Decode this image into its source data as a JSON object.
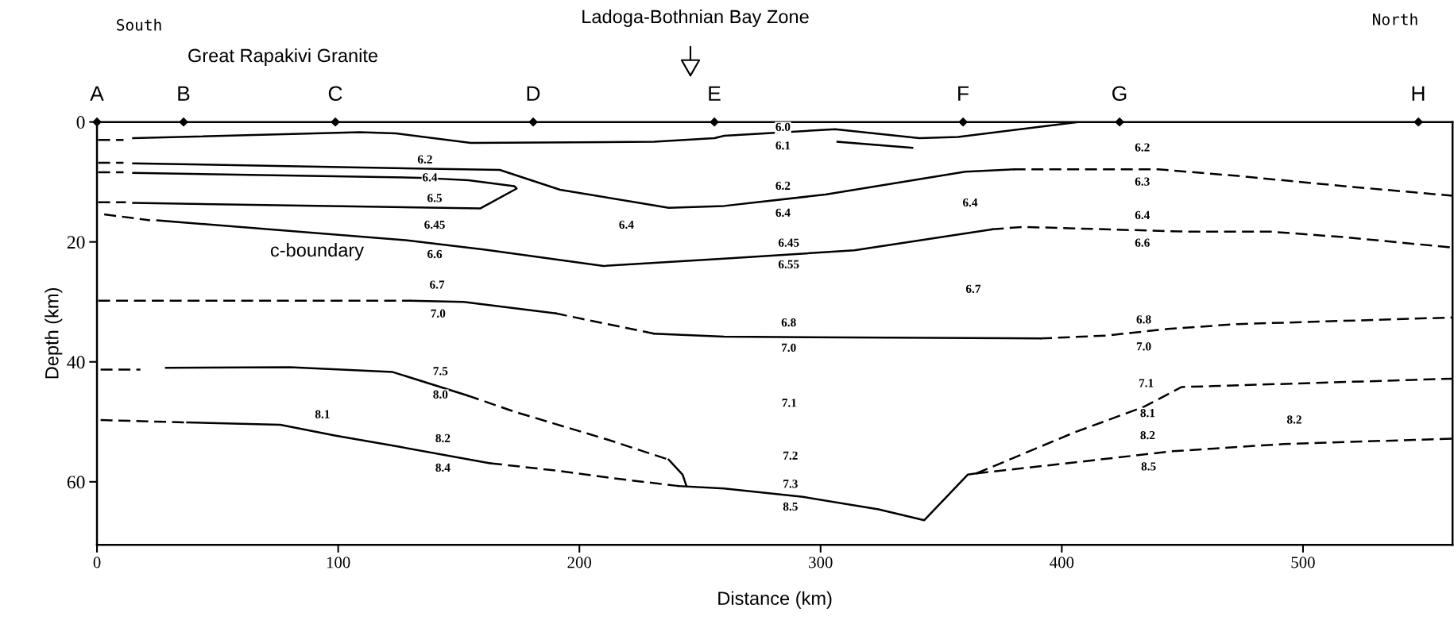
{
  "chart_data": {
    "type": "line",
    "xlabel": "Distance (km)",
    "ylabel": "Depth (km)",
    "xlim": [
      0,
      562
    ],
    "xticks": [
      0,
      100,
      200,
      300,
      400,
      500
    ],
    "ylim": [
      70.5,
      0
    ],
    "yticks": [
      0,
      20,
      40,
      60
    ],
    "grid": false,
    "series": [
      {
        "color": "#000000",
        "line_style": "dashed",
        "x": [
          0.5,
          11
        ],
        "values": [
          3.0,
          3.0
        ]
      },
      {
        "color": "#000000",
        "line_style": "solid",
        "x": [
          15,
          109,
          124,
          155,
          231,
          256,
          260,
          306,
          341,
          357,
          407
        ],
        "values": [
          2.7,
          1.7,
          1.9,
          3.5,
          3.3,
          2.7,
          2.3,
          1.2,
          2.7,
          2.5,
          0
        ]
      },
      {
        "color": "#000000",
        "line_style": "solid",
        "x": [
          307,
          338
        ],
        "values": [
          3.3,
          4.3
        ]
      },
      {
        "color": "#000000",
        "line_style": "dashed",
        "x": [
          0.5,
          11
        ],
        "values": [
          6.8,
          6.8
        ]
      },
      {
        "color": "#000000",
        "line_style": "solid",
        "x": [
          15,
          167,
          192,
          237,
          260,
          302,
          360,
          380
        ],
        "values": [
          6.9,
          8.0,
          11.3,
          14.3,
          14.0,
          12.1,
          8.3,
          7.9
        ]
      },
      {
        "color": "#000000",
        "line_style": "dashed",
        "x": [
          380,
          440,
          473,
          517,
          562
        ],
        "values": [
          7.9,
          7.9,
          9.0,
          10.7,
          12.3
        ]
      },
      {
        "color": "#000000",
        "line_style": "dashed",
        "x": [
          0.5,
          11
        ],
        "values": [
          8.4,
          8.4
        ]
      },
      {
        "color": "#000000",
        "line_style": "solid",
        "x": [
          15,
          134,
          154,
          173,
          174,
          159,
          15
        ],
        "values": [
          8.5,
          9.3,
          9.7,
          10.7,
          11.1,
          14.4,
          13.5
        ]
      },
      {
        "color": "#000000",
        "line_style": "dashed",
        "x": [
          0.5,
          12
        ],
        "values": [
          13.4,
          13.4
        ]
      },
      {
        "color": "#000000",
        "line_style": "dashed",
        "x": [
          3,
          22
        ],
        "values": [
          15.4,
          16.4
        ]
      },
      {
        "color": "#000000",
        "line_style": "solid",
        "x": [
          25,
          128,
          161,
          210,
          260,
          314,
          371
        ],
        "values": [
          16.4,
          19.7,
          21.3,
          24.0,
          22.8,
          21.4,
          17.9
        ]
      },
      {
        "color": "#000000",
        "line_style": "dashed",
        "x": [
          371,
          384,
          453,
          487,
          517,
          561
        ],
        "values": [
          17.9,
          17.5,
          18.3,
          18.3,
          19.2,
          20.9
        ]
      },
      {
        "color": "#000000",
        "line_style": "dashed",
        "x": [
          0.5,
          130
        ],
        "values": [
          29.8,
          29.8
        ]
      },
      {
        "color": "#000000",
        "line_style": "solid",
        "x": [
          130,
          152,
          190
        ],
        "values": [
          29.8,
          30.0,
          31.9
        ]
      },
      {
        "color": "#000000",
        "line_style": "dashed",
        "x": [
          190,
          231
        ],
        "values": [
          31.9,
          35.3
        ]
      },
      {
        "color": "#000000",
        "line_style": "solid",
        "x": [
          231,
          260,
          391
        ],
        "values": [
          35.3,
          35.8,
          36.1
        ]
      },
      {
        "color": "#000000",
        "line_style": "dashed",
        "x": [
          391,
          419,
          444,
          473,
          562
        ],
        "values": [
          36.1,
          35.6,
          34.5,
          33.7,
          32.6
        ]
      },
      {
        "color": "#000000",
        "line_style": "dashed",
        "x": [
          1.5,
          18
        ],
        "values": [
          41.3,
          41.3
        ]
      },
      {
        "color": "#000000",
        "line_style": "solid",
        "x": [
          28.6,
          80,
          122.6,
          153.6
        ],
        "values": [
          41.0,
          40.9,
          41.7,
          45.6
        ]
      },
      {
        "color": "#000000",
        "line_style": "dashed",
        "x": [
          153.6,
          173,
          212,
          237
        ],
        "values": [
          45.6,
          48.3,
          53.0,
          56.3
        ]
      },
      {
        "color": "#000000",
        "line_style": "solid",
        "x": [
          237,
          242.8,
          244.3
        ],
        "values": [
          56.3,
          58.8,
          60.6
        ]
      },
      {
        "color": "#000000",
        "line_style": "dashed",
        "x": [
          1.5,
          37.4
        ],
        "values": [
          49.7,
          50.1
        ]
      },
      {
        "color": "#000000",
        "line_style": "solid",
        "x": [
          37.4,
          76,
          99,
          124.6,
          163
        ],
        "values": [
          50.1,
          50.5,
          52.3,
          54.1,
          56.9
        ]
      },
      {
        "color": "#000000",
        "line_style": "dashed",
        "x": [
          163,
          192,
          212,
          241
        ],
        "values": [
          56.9,
          58.2,
          59.3,
          60.7
        ]
      },
      {
        "color": "#000000",
        "line_style": "solid",
        "x": [
          241,
          260,
          292.6,
          324,
          343,
          361,
          364.6
        ],
        "values": [
          60.7,
          61.1,
          62.5,
          64.6,
          66.4,
          58.8,
          58.6
        ]
      },
      {
        "color": "#000000",
        "line_style": "dashed",
        "x": [
          364.6,
          405,
          434,
          449.6,
          562
        ],
        "values": [
          58.6,
          51.8,
          47.5,
          44.2,
          42.8
        ]
      },
      {
        "color": "#000000",
        "line_style": "dashed",
        "x": [
          364.6,
          395.6,
          446,
          492,
          562
        ],
        "values": [
          58.6,
          57.2,
          54.9,
          53.7,
          52.8
        ]
      }
    ],
    "annotations": [
      "South",
      "Great Rapakivi Granite",
      "North",
      "Ladoga-Bothnian Bay Zone",
      "c-boundary",
      "A",
      "B",
      "C",
      "D",
      "E",
      "F",
      "G",
      "H",
      {
        "text": "6.2",
        "x": 136,
        "y": 6.4
      },
      {
        "text": "6.4",
        "x": 138,
        "y": 9.4
      },
      {
        "text": "6.5",
        "x": 140,
        "y": 12.85
      },
      {
        "text": "6.45",
        "x": 140,
        "y": 17.3
      },
      {
        "text": "6.4",
        "x": 219.5,
        "y": 17.3
      },
      {
        "text": "6.6",
        "x": 140,
        "y": 22.2
      },
      {
        "text": "6.7",
        "x": 141,
        "y": 27.3
      },
      {
        "text": "7.0",
        "x": 141.4,
        "y": 32.1
      },
      {
        "text": "7.5",
        "x": 142.4,
        "y": 41.7
      },
      {
        "text": "8.0",
        "x": 142.4,
        "y": 45.6
      },
      {
        "text": "8.1",
        "x": 93.5,
        "y": 48.9
      },
      {
        "text": "8.2",
        "x": 143.4,
        "y": 52.9
      },
      {
        "text": "8.4",
        "x": 143.4,
        "y": 57.8
      },
      {
        "text": "6.0",
        "x": 284.4,
        "y": 1.0
      },
      {
        "text": "6.1",
        "x": 284.4,
        "y": 4.1
      },
      {
        "text": "6.2",
        "x": 433.4,
        "y": 4.4
      },
      {
        "text": "6.2",
        "x": 284.4,
        "y": 10.8
      },
      {
        "text": "6.3",
        "x": 433.4,
        "y": 10.1
      },
      {
        "text": "6.4",
        "x": 362,
        "y": 13.6
      },
      {
        "text": "6.4",
        "x": 284.4,
        "y": 15.3
      },
      {
        "text": "6.4",
        "x": 433.4,
        "y": 15.7
      },
      {
        "text": "6.45",
        "x": 286.8,
        "y": 20.3
      },
      {
        "text": "6.6",
        "x": 433.4,
        "y": 20.3
      },
      {
        "text": "6.55",
        "x": 286.8,
        "y": 23.9
      },
      {
        "text": "6.7",
        "x": 363.3,
        "y": 28.0
      },
      {
        "text": "6.8",
        "x": 286.8,
        "y": 33.6
      },
      {
        "text": "6.8",
        "x": 434,
        "y": 33.1
      },
      {
        "text": "7.0",
        "x": 286.8,
        "y": 37.8
      },
      {
        "text": "7.0",
        "x": 434,
        "y": 37.6
      },
      {
        "text": "7.1",
        "x": 435,
        "y": 43.7
      },
      {
        "text": "7.1",
        "x": 287,
        "y": 47.0
      },
      {
        "text": "8.1",
        "x": 435.6,
        "y": 48.7
      },
      {
        "text": "8.2",
        "x": 496.4,
        "y": 49.8
      },
      {
        "text": "8.2",
        "x": 435.6,
        "y": 52.4
      },
      {
        "text": "7.2",
        "x": 287.5,
        "y": 55.8
      },
      {
        "text": "8.5",
        "x": 436,
        "y": 57.6
      },
      {
        "text": "7.3",
        "x": 287.5,
        "y": 60.5
      },
      {
        "text": "8.5",
        "x": 287.5,
        "y": 64.3
      }
    ]
  }
}
